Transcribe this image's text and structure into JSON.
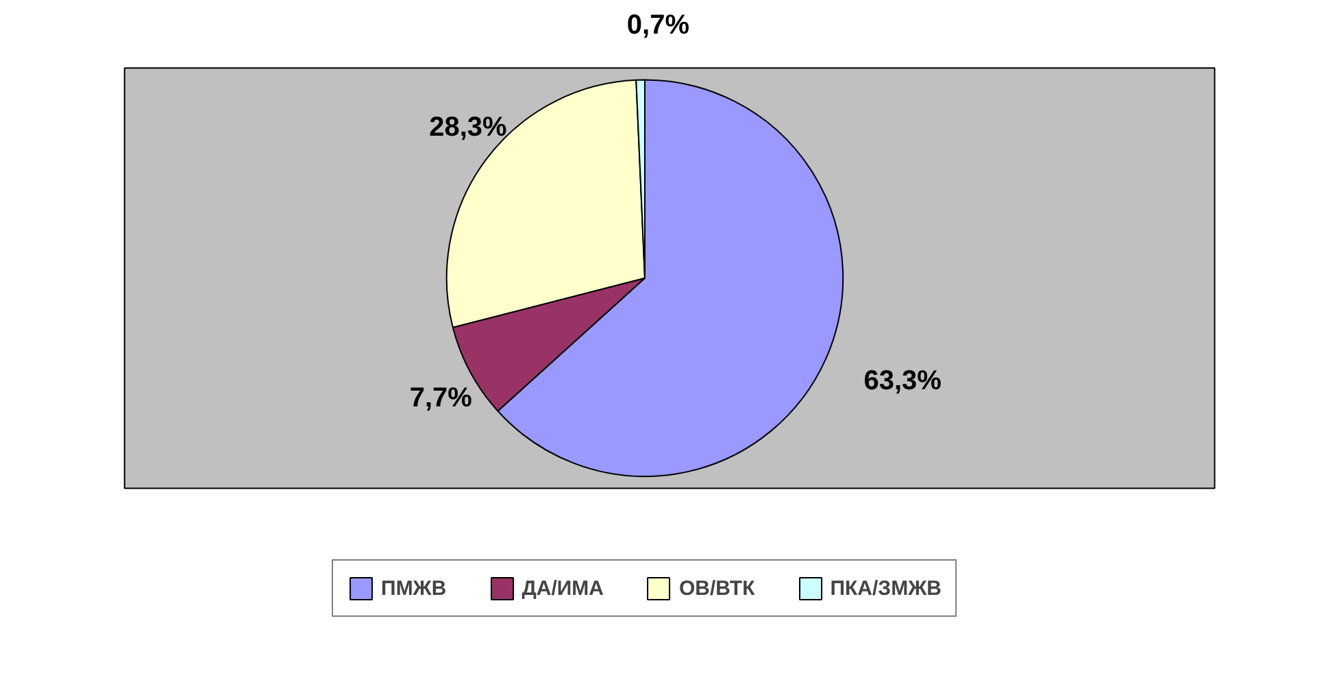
{
  "chart_data": {
    "type": "pie",
    "categories": [
      "ПМЖВ",
      "ДА/ИМА",
      "ОВ/ВТК",
      "ПКА/ЗМЖВ"
    ],
    "values": [
      63.3,
      7.7,
      28.3,
      0.7
    ],
    "colors": [
      "#9999ff",
      "#993366",
      "#ffffcc",
      "#ccffff"
    ],
    "value_labels": [
      "63,3%",
      "7,7%",
      "28,3%",
      "0,7%"
    ],
    "legend": "bottom"
  }
}
